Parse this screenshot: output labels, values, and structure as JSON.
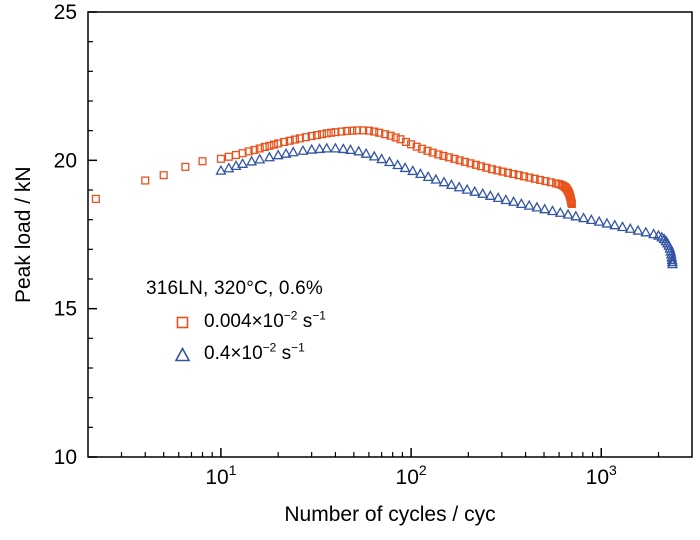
{
  "chart_data": {
    "type": "scatter",
    "title": "",
    "xlabel": "Number of cycles / cyc",
    "ylabel": "Peak load / kN",
    "x_scale": "log10",
    "xlim": [
      2,
      3000
    ],
    "ylim": [
      10,
      25
    ],
    "y_ticks": [
      10,
      15,
      20,
      25
    ],
    "y_minor_step": 1,
    "x_major_ticks": [
      {
        "value": 10,
        "base": "10",
        "exp": "1"
      },
      {
        "value": 100,
        "base": "10",
        "exp": "2"
      },
      {
        "value": 1000,
        "base": "10",
        "exp": "3"
      }
    ],
    "grid": false,
    "legend_position": "inside-left",
    "annotation": "316LN, 320°C, 0.6%",
    "series": [
      {
        "name": "0.004×10⁻² s⁻¹",
        "label_parts": {
          "value": "0.004",
          "times": "×10",
          "exp": "−2",
          "unit": " s",
          "unit_exp": "−1"
        },
        "marker": "square",
        "color": "#e8521c",
        "x": [
          2.2,
          4,
          5,
          6.5,
          8,
          10,
          11,
          12,
          13,
          14,
          15,
          16,
          17,
          18,
          19,
          20,
          21.5,
          23,
          24.5,
          26,
          28,
          30,
          32,
          34,
          36,
          38,
          40,
          43,
          46,
          49,
          52,
          56,
          60,
          64,
          68,
          73,
          78,
          83,
          88,
          94,
          100,
          107,
          114,
          122,
          130,
          139,
          148,
          158,
          169,
          180,
          192,
          205,
          219,
          233,
          249,
          266,
          284,
          303,
          323,
          345,
          368,
          393,
          419,
          447,
          477,
          509,
          543,
          579,
          600,
          618,
          632,
          644,
          654,
          662,
          669,
          675,
          680,
          684,
          687,
          690,
          692,
          694,
          696,
          698,
          700
        ],
        "y": [
          18.7,
          19.32,
          19.5,
          19.78,
          19.97,
          20.05,
          20.12,
          20.18,
          20.24,
          20.3,
          20.35,
          20.4,
          20.45,
          20.49,
          20.53,
          20.57,
          20.62,
          20.66,
          20.7,
          20.74,
          20.78,
          20.82,
          20.85,
          20.88,
          20.91,
          20.93,
          20.95,
          20.97,
          20.99,
          21.0,
          21.01,
          21.01,
          21.0,
          20.97,
          20.93,
          20.88,
          20.83,
          20.77,
          20.71,
          20.62,
          20.54,
          20.46,
          20.39,
          20.32,
          20.26,
          20.2,
          20.15,
          20.1,
          20.05,
          20.0,
          19.95,
          19.9,
          19.85,
          19.8,
          19.75,
          19.7,
          19.66,
          19.62,
          19.58,
          19.54,
          19.5,
          19.46,
          19.42,
          19.38,
          19.34,
          19.3,
          19.26,
          19.22,
          19.2,
          19.17,
          19.14,
          19.1,
          19.06,
          19.01,
          18.96,
          18.91,
          18.86,
          18.81,
          18.76,
          18.71,
          18.67,
          18.63,
          18.59,
          18.56,
          18.53
        ]
      },
      {
        "name": "0.4×10⁻² s⁻¹",
        "label_parts": {
          "value": "0.4",
          "times": "×10",
          "exp": "−2",
          "unit": " s",
          "unit_exp": "−1"
        },
        "marker": "triangle",
        "color": "#3353a4",
        "x": [
          10,
          11,
          12,
          13,
          14.5,
          16,
          18,
          20,
          22,
          24,
          27,
          30,
          33,
          36,
          40,
          44,
          48,
          53,
          58,
          64,
          70,
          77,
          85,
          93,
          102,
          112,
          123,
          135,
          149,
          163,
          179,
          197,
          216,
          238,
          261,
          287,
          315,
          346,
          380,
          418,
          459,
          504,
          554,
          609,
          669,
          735,
          807,
          887,
          975,
          1071,
          1177,
          1293,
          1421,
          1561,
          1715,
          1885,
          2000,
          2080,
          2140,
          2190,
          2230,
          2265,
          2295,
          2318,
          2335,
          2348,
          2358,
          2365,
          2370
        ],
        "y": [
          19.65,
          19.73,
          19.81,
          19.88,
          19.96,
          20.03,
          20.1,
          20.17,
          20.22,
          20.27,
          20.32,
          20.36,
          20.38,
          20.4,
          20.4,
          20.38,
          20.35,
          20.3,
          20.22,
          20.13,
          20.04,
          19.94,
          19.84,
          19.74,
          19.64,
          19.54,
          19.44,
          19.35,
          19.26,
          19.17,
          19.09,
          19.01,
          18.94,
          18.87,
          18.8,
          18.73,
          18.66,
          18.6,
          18.53,
          18.47,
          18.41,
          18.35,
          18.29,
          18.23,
          18.17,
          18.11,
          18.05,
          17.99,
          17.93,
          17.87,
          17.81,
          17.75,
          17.69,
          17.63,
          17.57,
          17.51,
          17.46,
          17.4,
          17.34,
          17.27,
          17.2,
          17.12,
          17.03,
          16.93,
          16.83,
          16.73,
          16.64,
          16.57,
          16.5
        ]
      }
    ]
  }
}
